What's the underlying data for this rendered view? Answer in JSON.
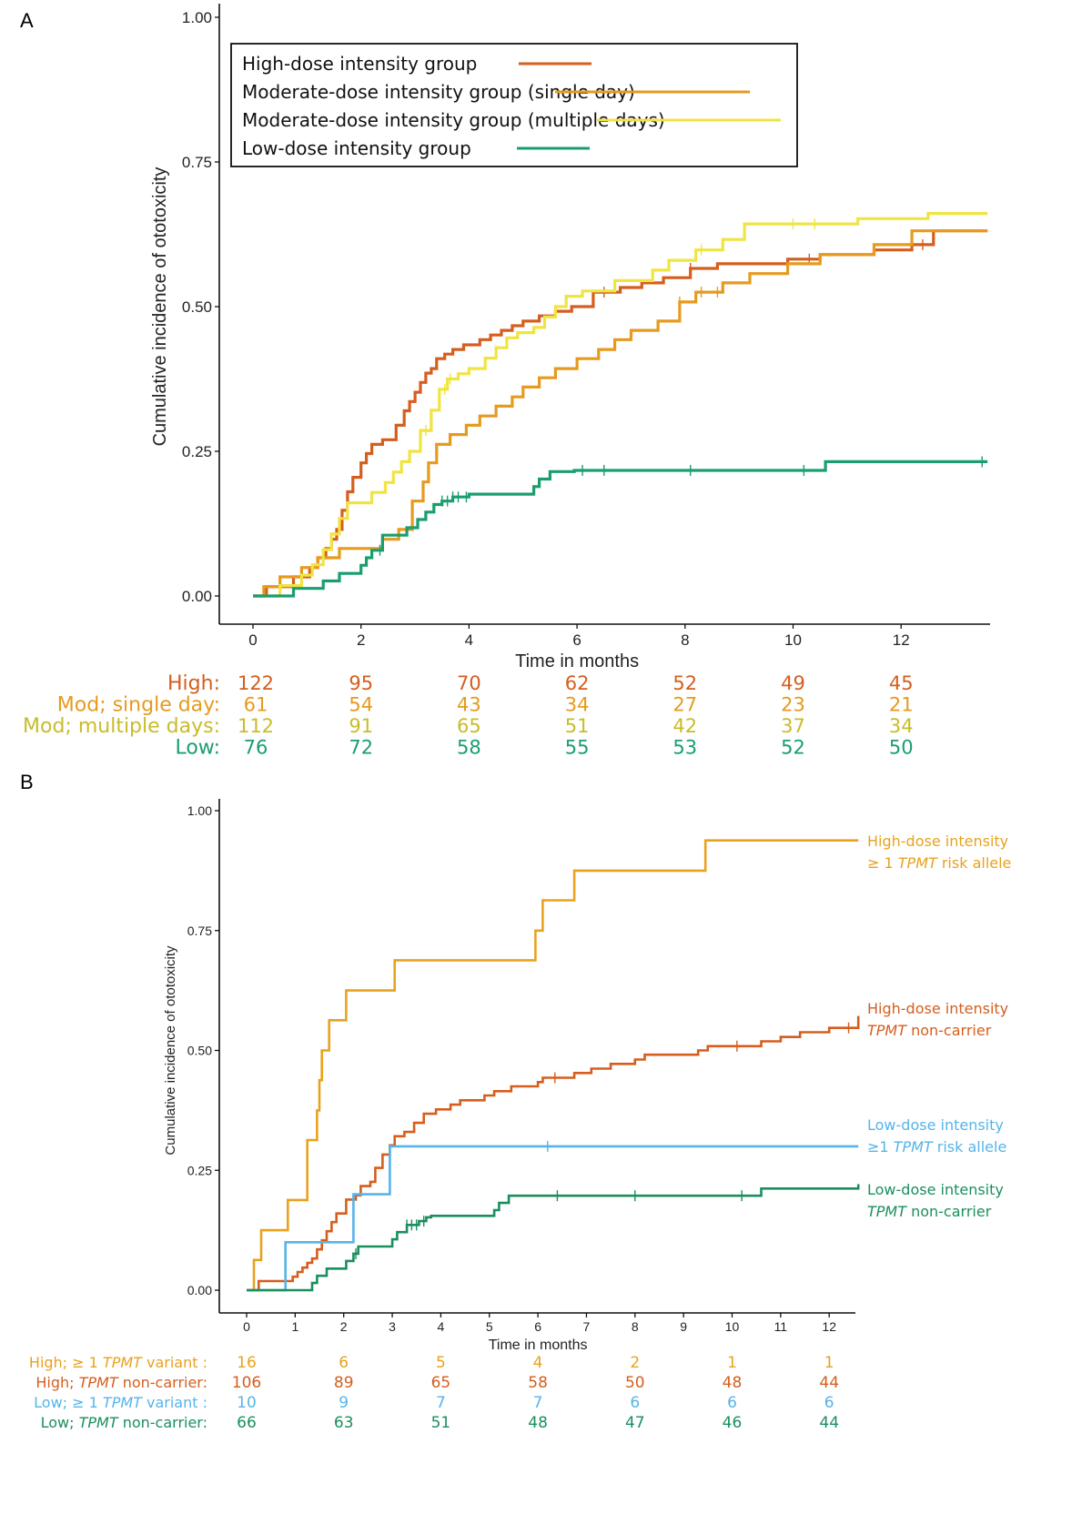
{
  "chart_data": [
    {
      "panel": "A",
      "type": "line",
      "step": true,
      "title": "",
      "xlabel": "Time in months",
      "ylabel": "Cumulative incidence of ototoxicity",
      "xlim": [
        -0.6,
        13.6
      ],
      "ylim": [
        -0.05,
        1.0
      ],
      "xticks": [
        0,
        2,
        4,
        6,
        8,
        10,
        12
      ],
      "yticks": [
        0.0,
        0.25,
        0.5,
        0.75,
        1.0
      ],
      "ytick_labels": [
        "0.00",
        "0.25",
        "0.50",
        "0.75",
        "1.00"
      ],
      "grid": false,
      "legend_position": "top-left (inside, boxed)",
      "series": [
        {
          "name": "High-dose intensity group",
          "risk_label": "High:",
          "color": "#D55E1E",
          "x": [
            0,
            0.25,
            0.75,
            1.05,
            1.2,
            1.35,
            1.45,
            1.55,
            1.65,
            1.75,
            1.85,
            2.0,
            2.1,
            2.2,
            2.4,
            2.65,
            2.8,
            2.9,
            3.0,
            3.1,
            3.2,
            3.3,
            3.4,
            3.55,
            3.7,
            3.9,
            4.2,
            4.4,
            4.6,
            4.8,
            5.0,
            5.3,
            5.6,
            5.9,
            6.3,
            6.8,
            7.2,
            7.6,
            8.1,
            8.6,
            9.4,
            9.9,
            10.5,
            11.5,
            12.2,
            12.6,
            13.6
          ],
          "y": [
            0.0,
            0.016,
            0.033,
            0.049,
            0.066,
            0.082,
            0.098,
            0.115,
            0.148,
            0.18,
            0.205,
            0.23,
            0.246,
            0.262,
            0.27,
            0.295,
            0.32,
            0.336,
            0.352,
            0.369,
            0.385,
            0.393,
            0.41,
            0.418,
            0.426,
            0.434,
            0.443,
            0.451,
            0.459,
            0.467,
            0.475,
            0.484,
            0.492,
            0.5,
            0.525,
            0.533,
            0.541,
            0.55,
            0.566,
            0.574,
            0.574,
            0.582,
            0.59,
            0.598,
            0.607,
            0.631,
            0.631
          ],
          "censor_x": [
            6.5,
            8.1,
            10.3,
            12.4
          ],
          "at_risk": [
            122,
            95,
            70,
            62,
            52,
            49,
            45
          ]
        },
        {
          "name": "Moderate-dose intensity group (single day)",
          "risk_label": "Mod; single day:",
          "color": "#E69A1E",
          "x": [
            0,
            0.2,
            0.5,
            0.9,
            1.2,
            1.6,
            2.4,
            2.7,
            2.95,
            3.15,
            3.25,
            3.4,
            3.65,
            3.95,
            4.2,
            4.5,
            4.8,
            5.0,
            5.3,
            5.6,
            6.0,
            6.4,
            6.7,
            7.0,
            7.5,
            7.9,
            8.2,
            8.7,
            9.2,
            9.9,
            10.5,
            11.5,
            12.2,
            13.6
          ],
          "y": [
            0.0,
            0.016,
            0.033,
            0.049,
            0.066,
            0.082,
            0.098,
            0.115,
            0.164,
            0.197,
            0.23,
            0.262,
            0.279,
            0.295,
            0.311,
            0.328,
            0.344,
            0.361,
            0.377,
            0.393,
            0.41,
            0.426,
            0.443,
            0.459,
            0.475,
            0.508,
            0.525,
            0.541,
            0.557,
            0.574,
            0.59,
            0.607,
            0.631,
            0.631
          ],
          "censor_x": [
            7.9,
            8.3,
            8.6
          ],
          "at_risk": [
            61,
            54,
            43,
            34,
            27,
            23,
            21
          ]
        },
        {
          "name": "Moderate-dose intensity group (multiple days)",
          "risk_label": "Mod; multiple days:",
          "color": "#F0E442",
          "x": [
            0,
            0.5,
            0.9,
            1.1,
            1.3,
            1.45,
            1.6,
            1.75,
            2.2,
            2.45,
            2.6,
            2.75,
            2.9,
            3.1,
            3.3,
            3.45,
            3.6,
            3.8,
            4.0,
            4.3,
            4.5,
            4.7,
            4.9,
            5.2,
            5.4,
            5.6,
            5.8,
            6.1,
            6.7,
            7.4,
            7.7,
            8.2,
            8.7,
            9.1,
            10.0,
            11.2,
            12.5,
            13.6
          ],
          "y": [
            0.0,
            0.018,
            0.036,
            0.054,
            0.08,
            0.107,
            0.134,
            0.161,
            0.179,
            0.196,
            0.214,
            0.232,
            0.25,
            0.286,
            0.321,
            0.357,
            0.375,
            0.384,
            0.393,
            0.411,
            0.429,
            0.446,
            0.455,
            0.464,
            0.482,
            0.5,
            0.518,
            0.527,
            0.545,
            0.563,
            0.58,
            0.598,
            0.616,
            0.643,
            0.643,
            0.652,
            0.661,
            0.661
          ],
          "censor_x": [
            3.2,
            3.55,
            3.65,
            8.3,
            10.0,
            10.4
          ],
          "at_risk": [
            112,
            91,
            65,
            51,
            42,
            37,
            34
          ]
        },
        {
          "name": "Low-dose intensity group",
          "risk_label": "Low:",
          "color": "#1A9E6E",
          "x": [
            0,
            0.75,
            1.3,
            1.6,
            2.0,
            2.1,
            2.2,
            2.4,
            2.85,
            3.05,
            3.2,
            3.35,
            3.5,
            3.7,
            3.9,
            4.0,
            5.2,
            5.3,
            5.5,
            5.95,
            10.6,
            13.6
          ],
          "y": [
            0.0,
            0.013,
            0.026,
            0.039,
            0.053,
            0.066,
            0.079,
            0.105,
            0.118,
            0.132,
            0.145,
            0.158,
            0.164,
            0.171,
            0.171,
            0.176,
            0.189,
            0.202,
            0.215,
            0.217,
            0.232,
            0.232
          ],
          "censor_x": [
            2.35,
            3.5,
            3.6,
            3.7,
            3.8,
            3.95,
            6.1,
            6.5,
            8.1,
            10.2,
            13.5
          ],
          "at_risk": [
            76,
            72,
            58,
            55,
            53,
            52,
            50
          ]
        }
      ],
      "risk_table_times": [
        0,
        2,
        4,
        6,
        8,
        10,
        12
      ]
    },
    {
      "panel": "B",
      "type": "line",
      "step": true,
      "title": "",
      "xlabel": "Time in months",
      "ylabel": "Cumulative incidence of ototoxicity",
      "xlim": [
        -0.6,
        12.6
      ],
      "ylim": [
        -0.05,
        1.0
      ],
      "xticks": [
        0,
        1,
        2,
        3,
        4,
        5,
        6,
        7,
        8,
        9,
        10,
        11,
        12
      ],
      "yticks": [
        0.0,
        0.25,
        0.5,
        0.75,
        1.0
      ],
      "ytick_labels": [
        "0.00",
        "0.25",
        "0.50",
        "0.75",
        "1.00"
      ],
      "grid": false,
      "legend_position": "right (direct labels at line ends)",
      "series": [
        {
          "name": "High-dose intensity ≥ 1 TPMT risk allele",
          "label_line1": "High-dose intensity",
          "label_line2_pre": "≥ 1 ",
          "label_line2_italic": "TPMT",
          "label_line2_post": " risk allele",
          "risk_label_pre": "High; ≥ 1 ",
          "risk_label_italic": "TPMT",
          "risk_label_post": " variant :",
          "color": "#E8A21E",
          "x": [
            0,
            0.15,
            0.3,
            0.85,
            1.25,
            1.45,
            1.5,
            1.55,
            1.7,
            2.05,
            3.05,
            5.95,
            6.1,
            6.75,
            9.45,
            12.6
          ],
          "y": [
            0.0,
            0.063,
            0.125,
            0.188,
            0.313,
            0.375,
            0.438,
            0.5,
            0.563,
            0.625,
            0.688,
            0.75,
            0.813,
            0.875,
            0.938,
            0.938
          ],
          "censor_x": [],
          "at_risk": [
            16,
            6,
            5,
            4,
            2,
            1,
            1
          ]
        },
        {
          "name": "High-dose intensity TPMT non-carrier",
          "label_line1": "High-dose intensity",
          "label_line2_pre": "",
          "label_line2_italic": "TPMT",
          "label_line2_post": " non-carrier",
          "risk_label_pre": "High; ",
          "risk_label_italic": "TPMT",
          "risk_label_post": " non-carrier:",
          "color": "#D55E1E",
          "x": [
            0,
            0.25,
            0.95,
            1.05,
            1.15,
            1.25,
            1.35,
            1.45,
            1.55,
            1.65,
            1.75,
            1.85,
            2.05,
            2.25,
            2.35,
            2.55,
            2.65,
            2.8,
            2.95,
            3.05,
            3.25,
            3.45,
            3.65,
            3.9,
            4.2,
            4.4,
            4.9,
            5.1,
            5.45,
            6.0,
            6.1,
            6.75,
            7.1,
            7.5,
            8.0,
            8.2,
            9.3,
            9.5,
            10.6,
            11.0,
            11.4,
            12.0,
            12.6
          ],
          "y": [
            0.0,
            0.019,
            0.028,
            0.038,
            0.047,
            0.057,
            0.066,
            0.085,
            0.104,
            0.123,
            0.142,
            0.16,
            0.189,
            0.198,
            0.217,
            0.226,
            0.255,
            0.283,
            0.302,
            0.321,
            0.33,
            0.349,
            0.368,
            0.377,
            0.387,
            0.396,
            0.406,
            0.415,
            0.425,
            0.434,
            0.443,
            0.453,
            0.462,
            0.472,
            0.481,
            0.491,
            0.5,
            0.509,
            0.519,
            0.528,
            0.538,
            0.547,
            0.572
          ],
          "censor_x": [
            6.35,
            10.1,
            12.4
          ],
          "at_risk": [
            106,
            89,
            65,
            58,
            50,
            48,
            44
          ]
        },
        {
          "name": "Low-dose intensity ≥1 TPMT risk allele",
          "label_line1": "Low-dose intensity",
          "label_line2_pre": "≥1 ",
          "label_line2_italic": "TPMT",
          "label_line2_post": " risk allele",
          "risk_label_pre": "Low; ≥ 1 ",
          "risk_label_italic": "TPMT",
          "risk_label_post": " variant :",
          "color": "#56B4E9",
          "x": [
            0,
            0.8,
            2.2,
            2.95,
            12.6
          ],
          "y": [
            0.0,
            0.1,
            0.2,
            0.3,
            0.3
          ],
          "censor_x": [
            6.2
          ],
          "at_risk": [
            10,
            9,
            7,
            7,
            6,
            6,
            6
          ]
        },
        {
          "name": "Low-dose intensity TPMT non-carrier",
          "label_line1": "Low-dose intensity",
          "label_line2_pre": "",
          "label_line2_italic": "TPMT",
          "label_line2_post": " non-carrier",
          "risk_label_pre": "Low; ",
          "risk_label_italic": "TPMT",
          "risk_label_post": " non-carrier:",
          "color": "#1A8F5E",
          "x": [
            0,
            1.35,
            1.45,
            1.65,
            2.05,
            2.2,
            2.3,
            3.0,
            3.1,
            3.3,
            3.55,
            3.7,
            3.8,
            5.1,
            5.2,
            5.4,
            10.6,
            12.6
          ],
          "y": [
            0.0,
            0.015,
            0.03,
            0.045,
            0.061,
            0.076,
            0.091,
            0.106,
            0.121,
            0.136,
            0.144,
            0.152,
            0.155,
            0.167,
            0.182,
            0.197,
            0.212,
            0.221
          ],
          "censor_x": [
            2.25,
            3.3,
            3.4,
            3.5,
            3.65,
            6.4,
            8.0,
            10.2
          ],
          "at_risk": [
            66,
            63,
            51,
            48,
            47,
            46,
            44
          ]
        }
      ],
      "risk_table_times": [
        0,
        2,
        4,
        6,
        8,
        10,
        12
      ]
    }
  ],
  "panel_labels": [
    "A",
    "B"
  ],
  "legendA_title": ""
}
